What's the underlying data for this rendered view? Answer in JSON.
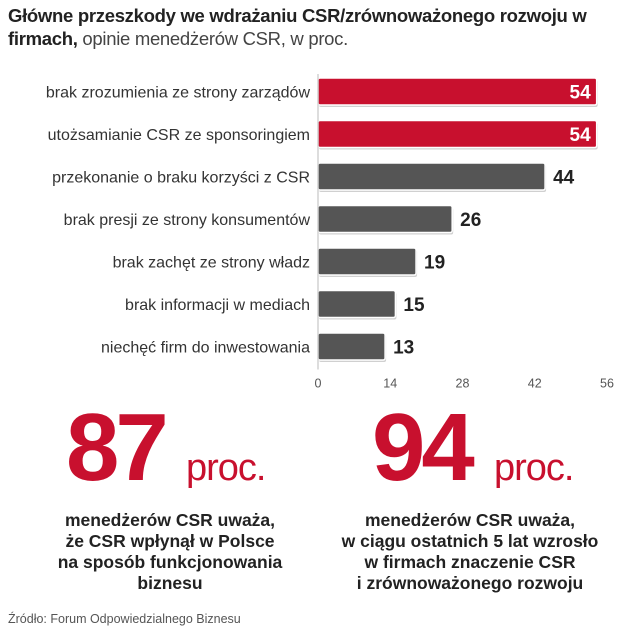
{
  "title": {
    "bold": "Główne przeszkody we wdrażaniu CSR/zrównoważonego rozwoju w firmach,",
    "light": " opinie menedżerów CSR, w proc."
  },
  "chart_data": {
    "type": "bar",
    "orientation": "horizontal",
    "categories": [
      "brak zrozumienia ze strony zarządów",
      "utożsamianie CSR ze sponsoringiem",
      "przekonanie o braku korzyści z CSR",
      "brak presji ze strony konsumentów",
      "brak zachęt ze strony władz",
      "brak informacji w mediach",
      "niechęć firm do inwestowania"
    ],
    "values": [
      54,
      54,
      44,
      26,
      19,
      15,
      13
    ],
    "highlight": [
      true,
      true,
      false,
      false,
      false,
      false,
      false
    ],
    "xlim": [
      0,
      56
    ],
    "xticks": [
      0,
      14,
      28,
      42,
      56
    ],
    "colors": {
      "highlight": "#c8102e",
      "normal": "#555555",
      "axis": "#bbbbbb"
    },
    "grid": false
  },
  "stats": [
    {
      "number": "87",
      "unit": "proc.",
      "desc": [
        "menedżerów CSR uważa,",
        "że CSR wpłynął w Polsce",
        "na sposób funkcjonowania",
        "biznesu"
      ]
    },
    {
      "number": "94",
      "unit": "proc.",
      "desc": [
        "menedżerów CSR uważa,",
        "w ciągu ostatnich 5 lat wzrosło",
        "w firmach znaczenie CSR",
        "i zrównoważonego rozwoju"
      ]
    }
  ],
  "source": "Źródło: Forum Odpowiedzialnego Biznesu"
}
